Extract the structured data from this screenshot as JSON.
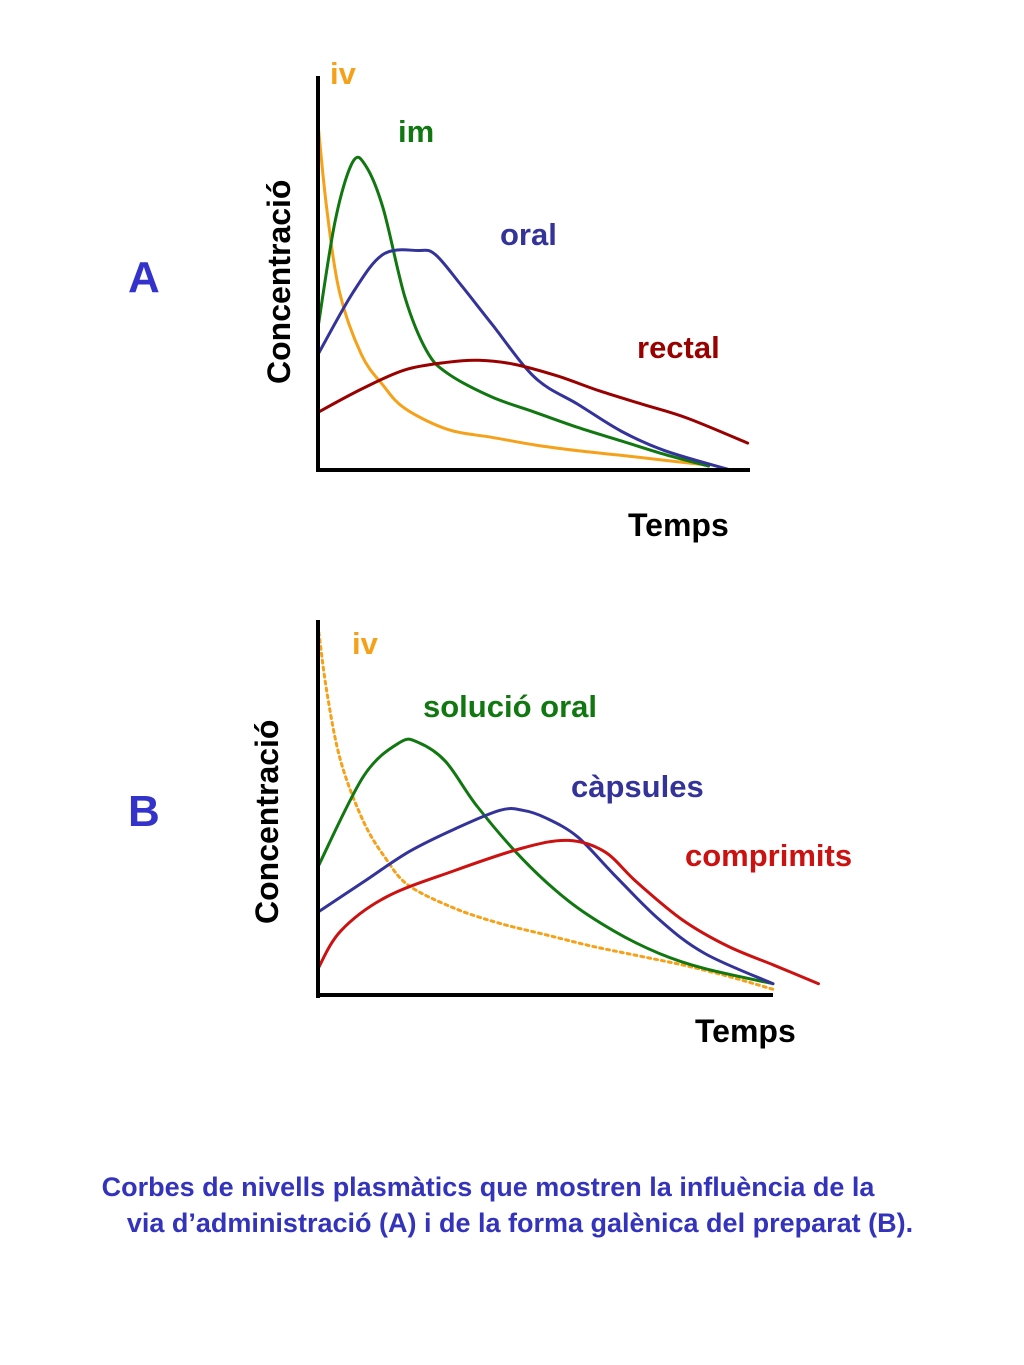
{
  "colors": {
    "panel_letter": "#3333cc",
    "caption": "#3333bb",
    "axis": "#000000"
  },
  "chart_data": [
    {
      "type": "line",
      "panel": "A",
      "title": "",
      "xlabel": "Temps",
      "ylabel": "Concentració",
      "xlim": [
        0,
        10
      ],
      "ylim": [
        0,
        10
      ],
      "series": [
        {
          "name": "iv",
          "color": "#f5a11a",
          "dashed": false,
          "x": [
            0,
            0.2,
            0.5,
            1.0,
            1.5,
            2.0,
            3.0,
            4.0,
            5.0,
            6.0,
            7.0,
            8.0,
            8.8
          ],
          "y": [
            9.0,
            6.8,
            4.6,
            3.0,
            2.2,
            1.6,
            1.05,
            0.85,
            0.65,
            0.5,
            0.38,
            0.25,
            0.15
          ]
        },
        {
          "name": "im",
          "color": "#117711",
          "dashed": false,
          "x": [
            0,
            0.4,
            0.8,
            1.1,
            1.5,
            2.0,
            2.5,
            3.0,
            4.0,
            5.0,
            6.0,
            7.0,
            8.0,
            9.0
          ],
          "y": [
            3.7,
            6.5,
            8.0,
            7.9,
            6.8,
            4.5,
            3.1,
            2.5,
            1.9,
            1.5,
            1.1,
            0.75,
            0.4,
            0.1
          ]
        },
        {
          "name": "oral",
          "color": "#333399",
          "dashed": false,
          "x": [
            0,
            0.8,
            1.5,
            2.3,
            2.7,
            3.3,
            4.0,
            5.0,
            6.0,
            7.0,
            8.0,
            9.5
          ],
          "y": [
            3.0,
            4.6,
            5.6,
            5.7,
            5.6,
            4.8,
            3.8,
            2.4,
            1.7,
            1.0,
            0.5,
            0.0
          ]
        },
        {
          "name": "rectal",
          "color": "#990000",
          "dashed": false,
          "x": [
            0,
            1.0,
            2.0,
            3.0,
            3.7,
            4.5,
            5.5,
            6.5,
            7.5,
            8.5,
            9.9
          ],
          "y": [
            1.5,
            2.1,
            2.6,
            2.8,
            2.85,
            2.75,
            2.45,
            2.05,
            1.7,
            1.35,
            0.7
          ]
        }
      ]
    },
    {
      "type": "line",
      "panel": "B",
      "title": "",
      "xlabel": "Temps",
      "ylabel": "Concentració",
      "xlim": [
        0,
        10
      ],
      "ylim": [
        0,
        10
      ],
      "series": [
        {
          "name": "iv",
          "color": "#f5a11a",
          "dashed": true,
          "x": [
            0,
            0.2,
            0.5,
            1.0,
            1.5,
            2.0,
            3.0,
            4.0,
            5.0,
            6.0,
            7.0,
            8.0,
            9.0,
            10.0
          ],
          "y": [
            9.8,
            8.0,
            6.2,
            4.6,
            3.6,
            2.9,
            2.3,
            1.9,
            1.6,
            1.3,
            1.05,
            0.8,
            0.5,
            0.15
          ]
        },
        {
          "name": "solució oral",
          "color": "#117711",
          "dashed": false,
          "x": [
            0,
            1.0,
            1.8,
            2.2,
            2.8,
            3.5,
            4.5,
            5.5,
            6.5,
            7.5,
            8.5,
            10.0
          ],
          "y": [
            3.4,
            5.8,
            6.7,
            6.7,
            6.2,
            5.0,
            3.6,
            2.5,
            1.7,
            1.1,
            0.7,
            0.3
          ]
        },
        {
          "name": "càpsules",
          "color": "#333399",
          "dashed": false,
          "x": [
            0,
            1.0,
            2.0,
            3.0,
            4.0,
            4.5,
            5.0,
            5.7,
            6.5,
            7.5,
            8.5,
            10.0
          ],
          "y": [
            2.2,
            3.0,
            3.8,
            4.4,
            4.9,
            4.9,
            4.7,
            4.2,
            3.2,
            2.0,
            1.1,
            0.3
          ]
        },
        {
          "name": "comprimits",
          "color": "#cc1111",
          "dashed": false,
          "x": [
            0,
            0.5,
            1.5,
            3.0,
            4.5,
            5.5,
            6.3,
            7.0,
            8.0,
            9.0,
            10.0,
            11.0
          ],
          "y": [
            0.7,
            1.7,
            2.6,
            3.3,
            3.9,
            4.1,
            3.8,
            3.0,
            2.0,
            1.3,
            0.8,
            0.3
          ]
        }
      ]
    }
  ],
  "panels": {
    "a": {
      "letter": "A",
      "ylabel": "Concentració",
      "xlabel": "Temps",
      "labels": {
        "iv": "iv",
        "im": "im",
        "oral": "oral",
        "rectal": "rectal"
      }
    },
    "b": {
      "letter": "B",
      "ylabel": "Concentració",
      "xlabel": "Temps",
      "labels": {
        "iv": "iv",
        "solucio_oral": "solució oral",
        "capsules": "càpsules",
        "comprimits": "comprimits"
      }
    }
  },
  "caption": {
    "line1": "Corbes de nivells plasmàtics que mostren la influència de la",
    "line2": "via d’administració (A)  i de la forma galènica del preparat (B)."
  }
}
